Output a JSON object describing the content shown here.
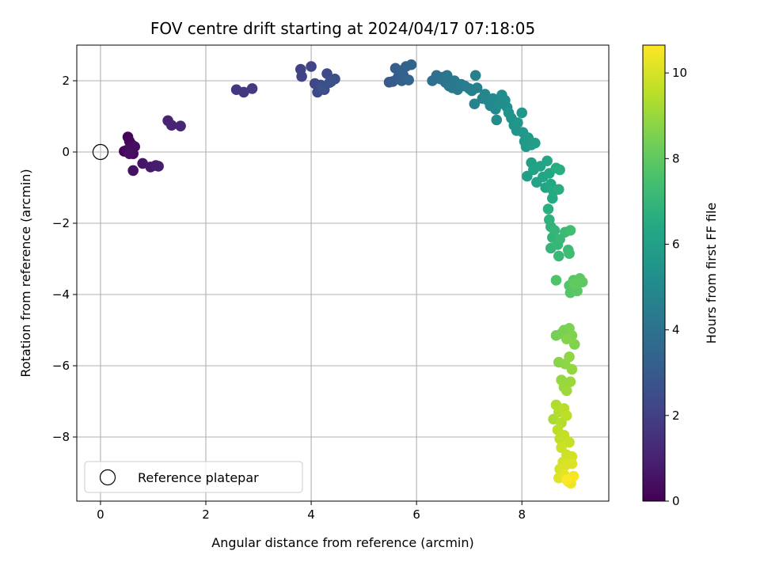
{
  "chart_data": {
    "type": "scatter",
    "title": "FOV centre drift starting at 2024/04/17 07:18:05",
    "xlabel": "Angular distance from reference (arcmin)",
    "ylabel": "Rotation from reference (arcmin)",
    "xlim": [
      -0.45,
      9.65
    ],
    "ylim": [
      -9.8,
      3.0
    ],
    "xticks": [
      0,
      2,
      4,
      6,
      8
    ],
    "yticks": [
      2,
      0,
      -2,
      -4,
      -6,
      -8
    ],
    "grid": true,
    "colormap": "viridis",
    "colorbar": {
      "label": "Hours from first FF file",
      "range": [
        0,
        10.65
      ],
      "ticks": [
        0,
        2,
        4,
        6,
        8,
        10
      ]
    },
    "reference_point": {
      "x": 0,
      "y": 0,
      "label": "Reference platepar"
    },
    "legend": {
      "position": "lower-left",
      "entries": [
        "Reference platepar"
      ]
    },
    "points": [
      [
        0.45,
        0.02,
        0.05
      ],
      [
        0.52,
        0.42,
        0.1
      ],
      [
        0.55,
        0.3,
        0.15
      ],
      [
        0.5,
        0.05,
        0.2
      ],
      [
        0.6,
        0.2,
        0.25
      ],
      [
        0.62,
        -0.05,
        0.3
      ],
      [
        0.57,
        0.1,
        0.35
      ],
      [
        0.65,
        0.15,
        0.4
      ],
      [
        0.55,
        -0.05,
        0.45
      ],
      [
        0.62,
        -0.52,
        0.5
      ],
      [
        0.8,
        -0.32,
        0.6
      ],
      [
        0.95,
        -0.42,
        0.7
      ],
      [
        1.05,
        -0.38,
        0.8
      ],
      [
        1.1,
        -0.4,
        0.85
      ],
      [
        1.28,
        0.88,
        1.0
      ],
      [
        1.35,
        0.75,
        1.05
      ],
      [
        1.52,
        0.73,
        1.1
      ],
      [
        2.58,
        1.75,
        1.7
      ],
      [
        2.72,
        1.68,
        1.75
      ],
      [
        2.88,
        1.78,
        1.8
      ],
      [
        3.8,
        2.32,
        2.1
      ],
      [
        3.82,
        2.12,
        2.15
      ],
      [
        4.0,
        2.4,
        2.2
      ],
      [
        4.07,
        1.92,
        2.25
      ],
      [
        4.12,
        1.68,
        2.3
      ],
      [
        4.18,
        1.88,
        2.35
      ],
      [
        4.25,
        1.75,
        2.4
      ],
      [
        4.3,
        2.2,
        2.45
      ],
      [
        4.35,
        1.95,
        2.5
      ],
      [
        4.45,
        2.05,
        2.55
      ],
      [
        4.22,
        1.8,
        2.6
      ],
      [
        4.38,
        1.98,
        2.65
      ],
      [
        5.48,
        1.96,
        3.0
      ],
      [
        5.55,
        1.98,
        3.05
      ],
      [
        5.6,
        2.35,
        3.1
      ],
      [
        5.65,
        2.1,
        3.15
      ],
      [
        5.7,
        2.28,
        3.2
      ],
      [
        5.72,
        2.0,
        3.25
      ],
      [
        5.75,
        2.15,
        3.3
      ],
      [
        5.8,
        2.4,
        3.35
      ],
      [
        5.85,
        2.02,
        3.4
      ],
      [
        5.9,
        2.45,
        3.45
      ],
      [
        6.3,
        2.0,
        3.9
      ],
      [
        6.38,
        2.15,
        3.95
      ],
      [
        6.45,
        2.05,
        4.0
      ],
      [
        6.5,
        2.1,
        4.05
      ],
      [
        6.55,
        1.95,
        4.1
      ],
      [
        6.58,
        2.15,
        4.15
      ],
      [
        6.62,
        1.85,
        4.2
      ],
      [
        6.68,
        1.8,
        4.25
      ],
      [
        6.72,
        2.0,
        4.3
      ],
      [
        6.78,
        1.75,
        4.35
      ],
      [
        6.85,
        1.9,
        4.4
      ],
      [
        6.92,
        1.85,
        4.45
      ],
      [
        7.0,
        1.78,
        4.5
      ],
      [
        7.05,
        1.72,
        4.55
      ],
      [
        7.12,
        2.15,
        4.6
      ],
      [
        7.15,
        1.8,
        4.65
      ],
      [
        7.1,
        1.35,
        4.7
      ],
      [
        7.25,
        1.5,
        4.8
      ],
      [
        7.3,
        1.62,
        4.85
      ],
      [
        7.35,
        1.45,
        4.9
      ],
      [
        7.4,
        1.3,
        4.95
      ],
      [
        7.45,
        1.5,
        5.0
      ],
      [
        7.5,
        1.2,
        5.05
      ],
      [
        7.52,
        0.9,
        5.1
      ],
      [
        7.58,
        1.35,
        5.15
      ],
      [
        7.62,
        1.6,
        5.2
      ],
      [
        7.68,
        1.45,
        5.25
      ],
      [
        7.72,
        1.25,
        5.3
      ],
      [
        7.75,
        1.1,
        5.35
      ],
      [
        7.8,
        0.95,
        5.4
      ],
      [
        7.85,
        0.75,
        5.45
      ],
      [
        7.9,
        0.6,
        5.5
      ],
      [
        7.92,
        0.82,
        5.55
      ],
      [
        8.0,
        1.1,
        5.6
      ],
      [
        8.02,
        0.55,
        5.65
      ],
      [
        8.05,
        0.3,
        5.7
      ],
      [
        8.08,
        0.15,
        5.75
      ],
      [
        8.12,
        0.4,
        5.8
      ],
      [
        8.18,
        0.2,
        5.85
      ],
      [
        8.25,
        0.25,
        5.9
      ],
      [
        8.1,
        -0.68,
        5.95
      ],
      [
        8.18,
        -0.3,
        6.0
      ],
      [
        8.22,
        -0.5,
        6.05
      ],
      [
        8.28,
        -0.85,
        6.1
      ],
      [
        8.35,
        -0.4,
        6.15
      ],
      [
        8.4,
        -0.7,
        6.2
      ],
      [
        8.45,
        -1.0,
        6.25
      ],
      [
        8.48,
        -0.25,
        6.3
      ],
      [
        8.52,
        -0.6,
        6.35
      ],
      [
        8.55,
        -0.9,
        6.4
      ],
      [
        8.58,
        -1.3,
        6.45
      ],
      [
        8.6,
        -1.1,
        6.5
      ],
      [
        8.65,
        -0.45,
        6.55
      ],
      [
        8.7,
        -1.05,
        6.6
      ],
      [
        8.72,
        -0.5,
        6.65
      ],
      [
        8.5,
        -1.6,
        6.7
      ],
      [
        8.52,
        -1.9,
        6.8
      ],
      [
        8.55,
        -2.1,
        6.85
      ],
      [
        8.58,
        -2.4,
        6.9
      ],
      [
        8.62,
        -2.2,
        6.95
      ],
      [
        8.55,
        -2.7,
        7.0
      ],
      [
        8.68,
        -2.6,
        7.05
      ],
      [
        8.72,
        -2.45,
        7.1
      ],
      [
        8.7,
        -2.92,
        7.15
      ],
      [
        8.82,
        -2.25,
        7.2
      ],
      [
        8.88,
        -2.75,
        7.25
      ],
      [
        8.9,
        -2.85,
        7.3
      ],
      [
        8.92,
        -2.2,
        7.35
      ],
      [
        8.65,
        -3.6,
        7.7
      ],
      [
        8.9,
        -3.75,
        7.75
      ],
      [
        8.92,
        -3.95,
        7.8
      ],
      [
        8.98,
        -3.6,
        7.85
      ],
      [
        9.05,
        -3.9,
        7.9
      ],
      [
        9.1,
        -3.55,
        7.95
      ],
      [
        9.15,
        -3.65,
        8.0
      ],
      [
        9.0,
        -3.7,
        8.05
      ],
      [
        8.65,
        -5.15,
        8.4
      ],
      [
        8.75,
        -5.1,
        8.45
      ],
      [
        8.8,
        -5.0,
        8.5
      ],
      [
        8.9,
        -4.95,
        8.55
      ],
      [
        8.95,
        -5.15,
        8.6
      ],
      [
        9.0,
        -5.4,
        8.65
      ],
      [
        8.85,
        -5.25,
        8.7
      ],
      [
        8.7,
        -5.9,
        8.75
      ],
      [
        8.82,
        -5.95,
        8.8
      ],
      [
        8.9,
        -5.75,
        8.85
      ],
      [
        8.95,
        -6.1,
        8.9
      ],
      [
        8.75,
        -6.4,
        8.95
      ],
      [
        8.8,
        -6.6,
        9.0
      ],
      [
        8.92,
        -6.45,
        9.05
      ],
      [
        8.85,
        -6.7,
        9.1
      ],
      [
        8.6,
        -7.5,
        9.3
      ],
      [
        8.65,
        -7.1,
        9.35
      ],
      [
        8.7,
        -7.3,
        9.4
      ],
      [
        8.75,
        -7.6,
        9.45
      ],
      [
        8.8,
        -7.2,
        9.5
      ],
      [
        8.68,
        -7.8,
        9.55
      ],
      [
        8.85,
        -7.4,
        9.6
      ],
      [
        8.72,
        -8.05,
        9.65
      ],
      [
        8.8,
        -7.95,
        9.7
      ],
      [
        8.9,
        -8.15,
        9.75
      ],
      [
        8.75,
        -8.3,
        9.8
      ],
      [
        8.85,
        -8.5,
        9.85
      ],
      [
        8.95,
        -8.55,
        9.9
      ],
      [
        8.78,
        -8.7,
        9.95
      ],
      [
        8.72,
        -8.9,
        10.0
      ],
      [
        8.82,
        -8.8,
        10.05
      ],
      [
        8.95,
        -8.75,
        10.1
      ],
      [
        8.7,
        -9.15,
        10.15
      ],
      [
        8.8,
        -9.05,
        10.2
      ],
      [
        8.88,
        -9.25,
        10.3
      ],
      [
        8.93,
        -9.3,
        10.4
      ],
      [
        8.98,
        -9.1,
        10.5
      ],
      [
        8.85,
        -9.2,
        10.6
      ]
    ]
  }
}
